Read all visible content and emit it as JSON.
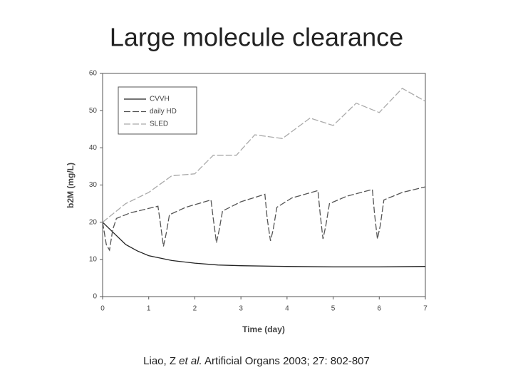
{
  "chart_data": {
    "type": "line",
    "title": "Large molecule clearance",
    "x_label": "Time (day)",
    "y_label": "b2M (mg/L)",
    "xlim": [
      0,
      7
    ],
    "ylim": [
      0,
      60
    ],
    "xticks": [
      0,
      1,
      2,
      3,
      4,
      5,
      6,
      7
    ],
    "yticks": [
      0,
      10,
      20,
      30,
      40,
      50,
      60
    ],
    "legend": "upper left",
    "grid": false,
    "series": [
      {
        "name": "CVVH",
        "color": "#222222",
        "line_style": "solid",
        "x": [
          0,
          0.25,
          0.5,
          0.75,
          1,
          1.5,
          2,
          2.5,
          3,
          4,
          5,
          6,
          7
        ],
        "values": [
          20,
          17,
          14,
          12.3,
          11,
          9.7,
          9,
          8.5,
          8.3,
          8.1,
          8,
          8,
          8.1
        ]
      },
      {
        "name": "daily HD",
        "color": "#555555",
        "line_style": "dashed",
        "x": [
          0,
          0.08,
          0.15,
          0.22,
          0.3,
          0.6,
          1.2,
          1.25,
          1.32,
          1.38,
          1.45,
          1.8,
          2.35,
          2.4,
          2.47,
          2.53,
          2.6,
          3,
          3.52,
          3.57,
          3.64,
          3.7,
          3.78,
          4.1,
          4.67,
          4.72,
          4.78,
          4.84,
          4.92,
          5.3,
          5.85,
          5.9,
          5.96,
          6.02,
          6.1,
          6.5,
          7
        ],
        "values": [
          20,
          14,
          12.5,
          18,
          21,
          22.5,
          24.3,
          20,
          13.5,
          17,
          22,
          24,
          26,
          21,
          14.5,
          18,
          23,
          25.5,
          27.5,
          21,
          15,
          18,
          24,
          26.5,
          28.5,
          22,
          15.5,
          19,
          25,
          27,
          28.8,
          22,
          15.5,
          19,
          26,
          28,
          29.5
        ]
      },
      {
        "name": "SLED",
        "color": "#aaaaaa",
        "line_style": "dashed",
        "x": [
          0,
          0.5,
          1,
          1.5,
          2,
          2.4,
          2.9,
          3.3,
          3.9,
          4.5,
          5,
          5.5,
          6,
          6.5,
          7
        ],
        "values": [
          20,
          25,
          28,
          32.5,
          33,
          38,
          38,
          43.5,
          42.5,
          48,
          46,
          52,
          49.5,
          56,
          52.5
        ]
      }
    ]
  },
  "citation": {
    "before": "Liao, Z",
    "italic": "et al.",
    "after": "Artificial Organs 2003; 27: 802-807"
  }
}
